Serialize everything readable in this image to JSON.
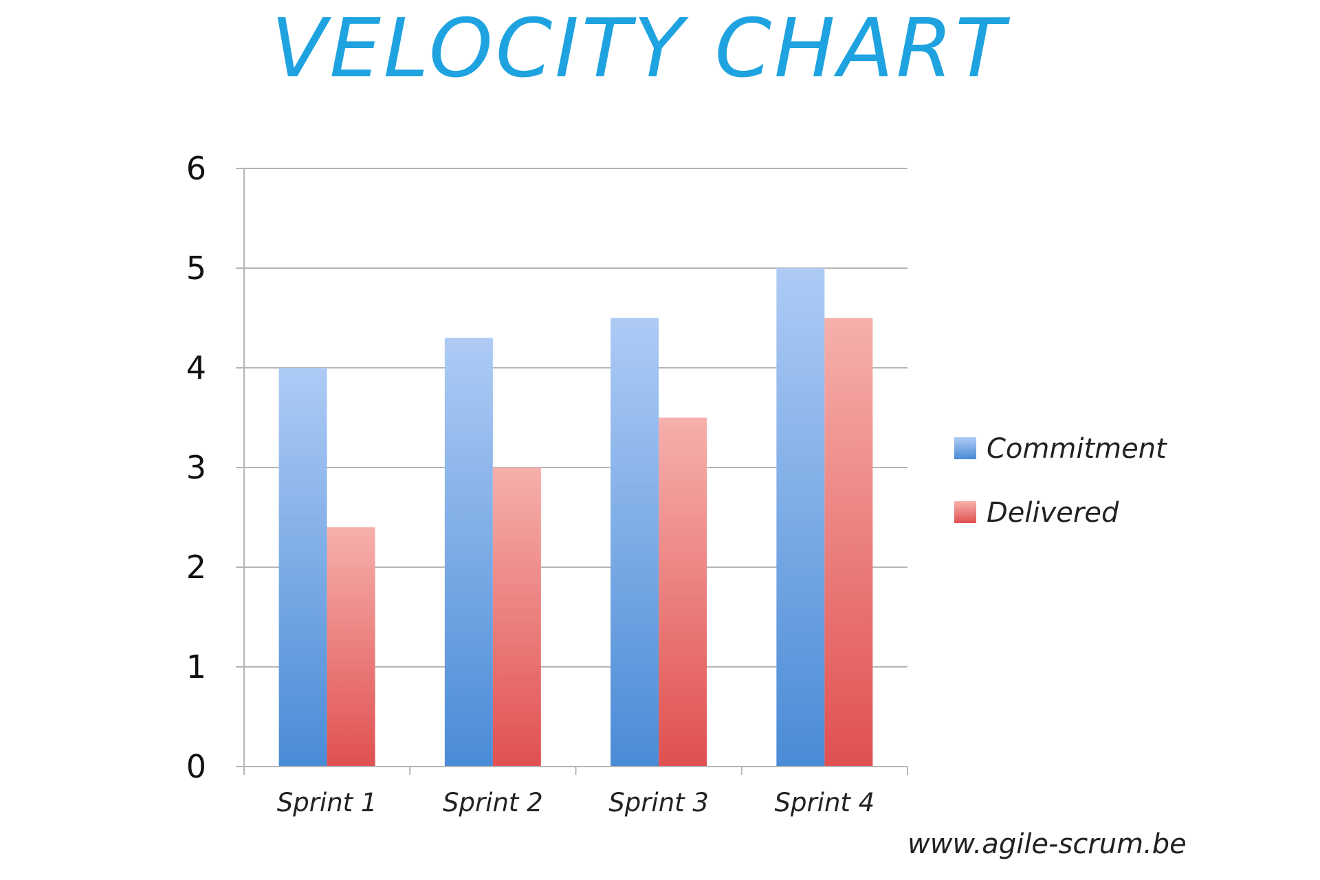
{
  "chart_data": {
    "type": "bar",
    "title": "VELOCITY CHART",
    "categories": [
      "Sprint 1",
      "Sprint 2",
      "Sprint 3",
      "Sprint 4"
    ],
    "series": [
      {
        "name": "Commitment",
        "values": [
          4,
          4.3,
          4.5,
          5
        ],
        "color": "#6fa2e6"
      },
      {
        "name": "Delivered",
        "values": [
          2.4,
          3,
          3.5,
          4.5
        ],
        "color": "#ef7c7c"
      }
    ],
    "ylim": [
      0,
      6
    ],
    "yticks": [
      "0",
      "1",
      "2",
      "3",
      "4",
      "5",
      "6"
    ],
    "grid": true,
    "legend_position": "right"
  },
  "watermark": "www.agile-scrum.be",
  "colors": {
    "title": "#1ea3e0",
    "grid": "#b5b5b5",
    "commitment_light": "#aecbf5",
    "commitment_dark": "#4a8bd6",
    "delivered_light": "#f6b0ac",
    "delivered_dark": "#e05050"
  }
}
